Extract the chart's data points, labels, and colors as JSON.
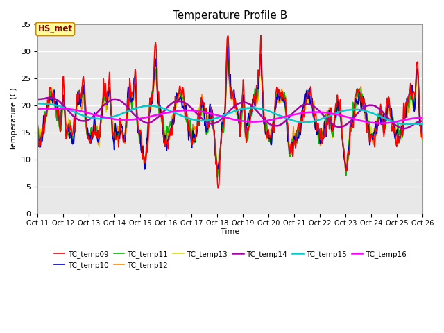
{
  "title": "Temperature Profile B",
  "xlabel": "Time",
  "ylabel": "Temperature (C)",
  "ylim": [
    0,
    35
  ],
  "yticks": [
    0,
    5,
    10,
    15,
    20,
    25,
    30,
    35
  ],
  "annotation": "HS_met",
  "series_colors": {
    "TC_temp09": "#ff0000",
    "TC_temp10": "#0000cd",
    "TC_temp11": "#00bb00",
    "TC_temp12": "#ff8800",
    "TC_temp13": "#dddd00",
    "TC_temp14": "#aa00aa",
    "TC_temp15": "#00cccc",
    "TC_temp16": "#ff00ff"
  },
  "series_linewidths": {
    "TC_temp09": 1.2,
    "TC_temp10": 1.2,
    "TC_temp11": 1.2,
    "TC_temp12": 1.2,
    "TC_temp13": 1.2,
    "TC_temp14": 1.8,
    "TC_temp15": 1.8,
    "TC_temp16": 1.8
  },
  "background_color": "#e8e8e8",
  "fig_background": "#ffffff",
  "num_points": 720
}
